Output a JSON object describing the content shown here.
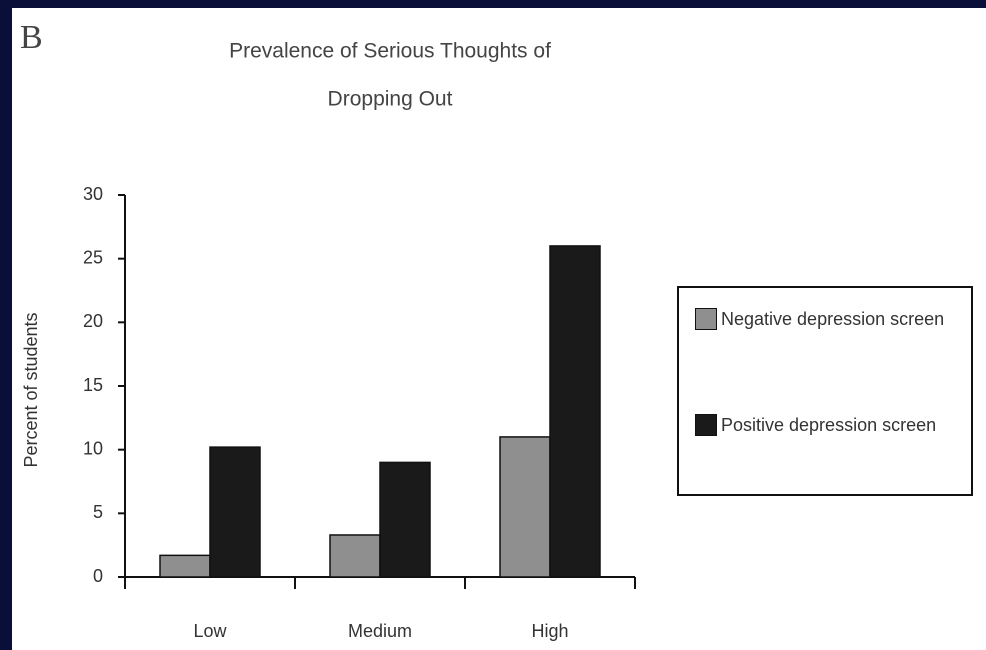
{
  "chart_data": {
    "type": "bar",
    "panel_label": "B",
    "title": [
      "Prevalence of Serious Thoughts of",
      "Dropping Out"
    ],
    "y_label": "Percent of students",
    "categories": [
      "Low",
      "Medium",
      "High"
    ],
    "series": [
      {
        "name": "Negative depression screen",
        "color": "#8f8f8f",
        "values": [
          1.7,
          3.3,
          11
        ]
      },
      {
        "name": "Positive depression screen",
        "color": "#1a1a1a",
        "values": [
          10.2,
          9,
          26
        ]
      }
    ],
    "ylim": [
      0,
      30
    ],
    "yticks": [
      0,
      5,
      10,
      15,
      20,
      25,
      30
    ],
    "grid": false,
    "legend": "right"
  }
}
